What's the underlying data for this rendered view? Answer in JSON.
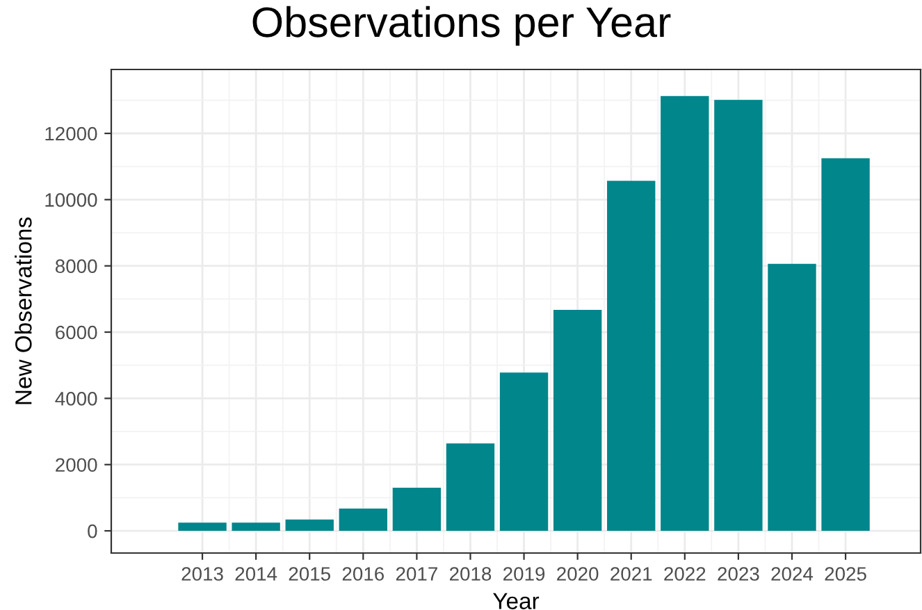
{
  "chart_data": {
    "type": "bar",
    "title": "Observations per Year",
    "xlabel": "Year",
    "ylabel": "New Observations",
    "x": [
      2013,
      2014,
      2015,
      2016,
      2017,
      2018,
      2019,
      2020,
      2021,
      2022,
      2023,
      2024,
      2025
    ],
    "values": [
      250,
      250,
      340,
      670,
      1300,
      2640,
      4780,
      6670,
      10570,
      13130,
      13010,
      8060,
      11250
    ],
    "color": "#00868b",
    "xlim": [
      2011.3,
      2026.4
    ],
    "xticks": [
      2013,
      2014,
      2015,
      2016,
      2017,
      2018,
      2019,
      2020,
      2021,
      2022,
      2023,
      2024,
      2025
    ],
    "ylim": [
      -670,
      13930
    ],
    "yticks": [
      0,
      2000,
      4000,
      6000,
      8000,
      10000,
      12000
    ],
    "grid": true,
    "legend": false
  }
}
